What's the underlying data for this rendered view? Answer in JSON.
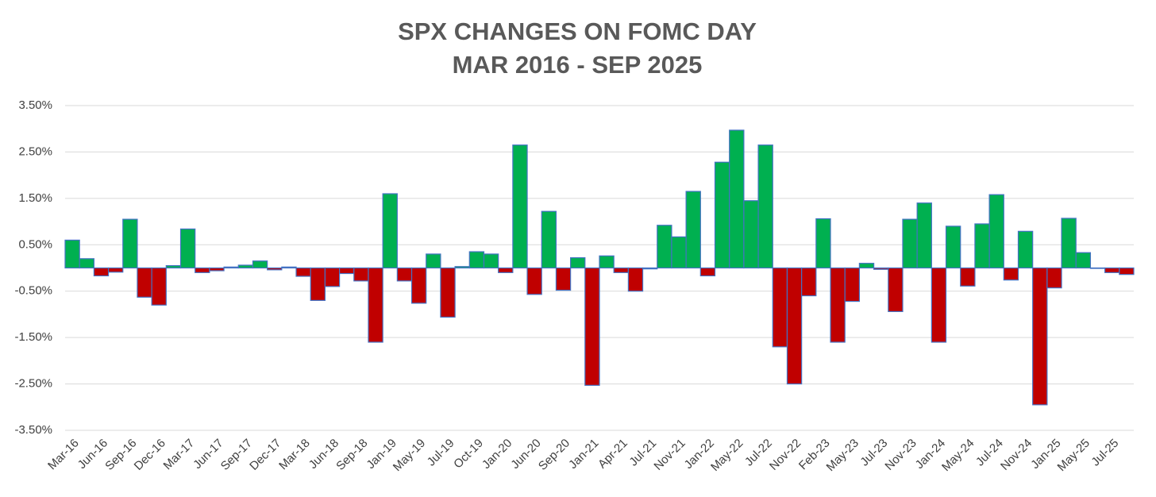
{
  "chart_data": {
    "type": "bar",
    "title": [
      "SPX CHANGES ON FOMC DAY",
      "MAR 2016 - SEP 2025"
    ],
    "categories": [
      "Mar-16",
      null,
      "Jun-16",
      null,
      "Sep-16",
      null,
      "Dec-16",
      null,
      "Mar-17",
      null,
      "Jun-17",
      null,
      "Sep-17",
      null,
      "Dec-17",
      null,
      "Mar-18",
      null,
      "Jun-18",
      null,
      "Sep-18",
      null,
      "Jan-19",
      null,
      "May-19",
      null,
      "Jul-19",
      null,
      "Oct-19",
      null,
      "Jan-20",
      null,
      "Jun-20",
      null,
      "Sep-20",
      null,
      "Jan-21",
      null,
      "Apr-21",
      null,
      "Jul-21",
      null,
      "Nov-21",
      null,
      "Jan-22",
      null,
      "May-22",
      null,
      "Jul-22",
      null,
      "Nov-22",
      null,
      "Feb-23",
      null,
      "May-23",
      null,
      "Jul-23",
      null,
      "Nov-23",
      null,
      "Jan-24",
      null,
      "May-24",
      null,
      "Jul-24",
      null,
      "Nov-24",
      null,
      "Jan-25",
      null,
      "May-25",
      null,
      "Jul-25",
      null
    ],
    "values": [
      0.6,
      0.2,
      -0.17,
      -0.09,
      1.05,
      -0.63,
      -0.8,
      0.05,
      0.84,
      -0.1,
      -0.06,
      0.02,
      0.06,
      0.15,
      -0.04,
      0.02,
      -0.18,
      -0.7,
      -0.4,
      -0.12,
      -0.28,
      -1.6,
      1.6,
      -0.28,
      -0.76,
      0.3,
      -1.06,
      0.03,
      0.35,
      0.3,
      -0.1,
      2.65,
      -0.57,
      1.22,
      -0.48,
      0.22,
      -2.53,
      0.26,
      -0.1,
      -0.5,
      -0.02,
      0.92,
      0.67,
      1.65,
      -0.17,
      2.28,
      2.97,
      1.45,
      2.65,
      -1.7,
      -2.5,
      -0.6,
      1.06,
      -1.6,
      -0.72,
      0.1,
      -0.03,
      -0.94,
      1.05,
      1.4,
      -1.6,
      0.9,
      -0.39,
      0.95,
      1.58,
      -0.26,
      0.79,
      -2.95,
      -0.43,
      1.07,
      0.33,
      -0.01,
      -0.1,
      -0.14
    ],
    "positive_color": "#00b050",
    "negative_color": "#c00000",
    "edge_color": "#4472c4",
    "ylim": [
      -3.5,
      3.5
    ],
    "yticks": [
      {
        "value": -3.5,
        "label": "-3.50%"
      },
      {
        "value": -2.5,
        "label": "-2.50%"
      },
      {
        "value": -1.5,
        "label": "-1.50%"
      },
      {
        "value": -0.5,
        "label": "-0.50%"
      },
      {
        "value": 0.5,
        "label": "0.50%"
      },
      {
        "value": 1.5,
        "label": "1.50%"
      },
      {
        "value": 2.5,
        "label": "2.50%"
      },
      {
        "value": 3.5,
        "label": "3.50%"
      }
    ],
    "grid": true
  }
}
